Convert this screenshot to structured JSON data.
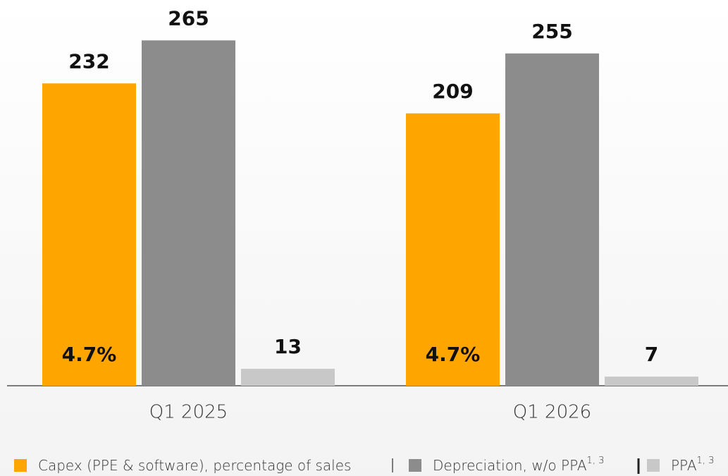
{
  "chart_data": {
    "type": "bar",
    "categories": [
      "Q1 2025",
      "Q1 2026"
    ],
    "series": [
      {
        "name": "Capex (PPE & software), percentage of sales",
        "color": "#ffa500",
        "values": [
          232,
          209
        ],
        "inner_labels": [
          "4.7%",
          "4.7%"
        ]
      },
      {
        "name": "Depreciation, w/o PPA",
        "footnote": "1, 3",
        "color": "#8c8c8c",
        "values": [
          265,
          255
        ]
      },
      {
        "name": "PPA",
        "footnote": "1, 3",
        "color": "#c8c8c8",
        "values": [
          13,
          7
        ]
      }
    ],
    "ylim": [
      0,
      296
    ],
    "grid": false,
    "legend": "bottom"
  }
}
